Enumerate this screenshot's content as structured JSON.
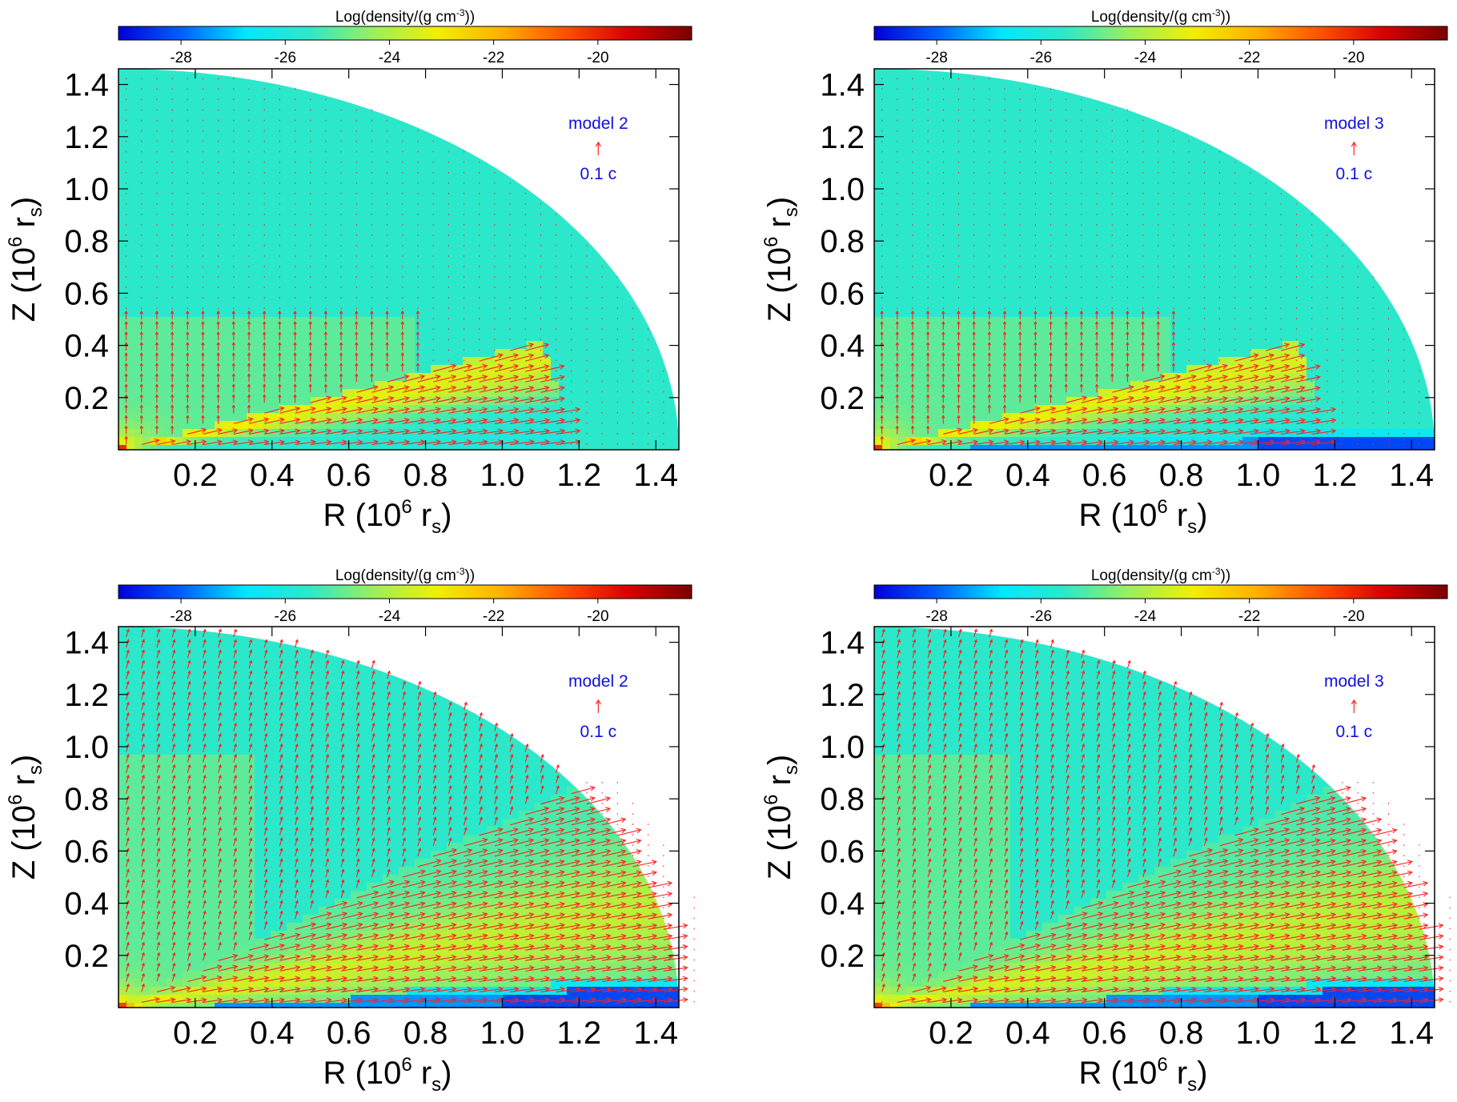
{
  "colorbar": {
    "label": "Log(density/(g cm",
    "label_sup": "-3",
    "label_end": "))",
    "range": [
      -29.2,
      -18.2
    ],
    "ticks": [
      -28,
      -26,
      -24,
      -22,
      -20
    ],
    "colors": [
      "#0000d8",
      "#0060ff",
      "#00e8ff",
      "#2ee8c8",
      "#9aef5e",
      "#f0f000",
      "#ffb000",
      "#ff5000",
      "#d80000",
      "#7a0000"
    ]
  },
  "axes": {
    "xlabel": "R (10",
    "xlabel_sup": "6",
    "xlabel_unit": " r",
    "xlabel_sub": "s",
    "xlabel_end": ")",
    "ylabel": "Z (10",
    "ylabel_sup": "6",
    "ylabel_unit": " r",
    "ylabel_sub": "s",
    "ylabel_end": ")"
  },
  "velocity_scale_label": "0.1 c",
  "chart_data": [
    {
      "type": "heatmap",
      "title": "model 2",
      "xlim": [
        0,
        1.46
      ],
      "ylim": [
        0,
        1.46
      ],
      "xticks": [
        "0.2",
        "0.4",
        "0.6",
        "0.8",
        "1.0",
        "1.2",
        "1.4"
      ],
      "yticks": [
        "0.2",
        "0.4",
        "0.6",
        "0.8",
        "1.0",
        "1.2",
        "1.4"
      ],
      "domain_radius": 1.46,
      "background_log_density": -25.6,
      "outflow_region": {
        "zmax": 0.5,
        "rmax": 1.15
      },
      "inflow_lane": false,
      "wide_wind": false
    },
    {
      "type": "heatmap",
      "title": "model 3",
      "xlim": [
        0,
        1.46
      ],
      "ylim": [
        0,
        1.46
      ],
      "xticks": [
        "0.2",
        "0.4",
        "0.6",
        "0.8",
        "1.0",
        "1.2",
        "1.4"
      ],
      "yticks": [
        "0.2",
        "0.4",
        "0.6",
        "0.8",
        "1.0",
        "1.2",
        "1.4"
      ],
      "domain_radius": 1.46,
      "background_log_density": -25.6,
      "outflow_region": {
        "zmax": 0.5,
        "rmax": 1.15
      },
      "inflow_lane": true,
      "wide_wind": false
    },
    {
      "type": "heatmap",
      "title": "model 2",
      "xlim": [
        0,
        1.46
      ],
      "ylim": [
        0,
        1.46
      ],
      "xticks": [
        "0.2",
        "0.4",
        "0.6",
        "0.8",
        "1.0",
        "1.2",
        "1.4"
      ],
      "yticks": [
        "0.2",
        "0.4",
        "0.6",
        "0.8",
        "1.0",
        "1.2",
        "1.4"
      ],
      "domain_radius": 1.46,
      "background_log_density": -25.6,
      "outflow_region": {
        "zmax": 0.98,
        "rmax": 1.46
      },
      "inflow_lane": true,
      "wide_wind": true
    },
    {
      "type": "heatmap",
      "title": "model 3",
      "xlim": [
        0,
        1.46
      ],
      "ylim": [
        0,
        1.46
      ],
      "xticks": [
        "0.2",
        "0.4",
        "0.6",
        "0.8",
        "1.0",
        "1.2",
        "1.4"
      ],
      "yticks": [
        "0.2",
        "0.4",
        "0.6",
        "0.8",
        "1.0",
        "1.2",
        "1.4"
      ],
      "domain_radius": 1.46,
      "background_log_density": -25.6,
      "outflow_region": {
        "zmax": 0.98,
        "rmax": 1.46
      },
      "inflow_lane": true,
      "wide_wind": true
    }
  ]
}
